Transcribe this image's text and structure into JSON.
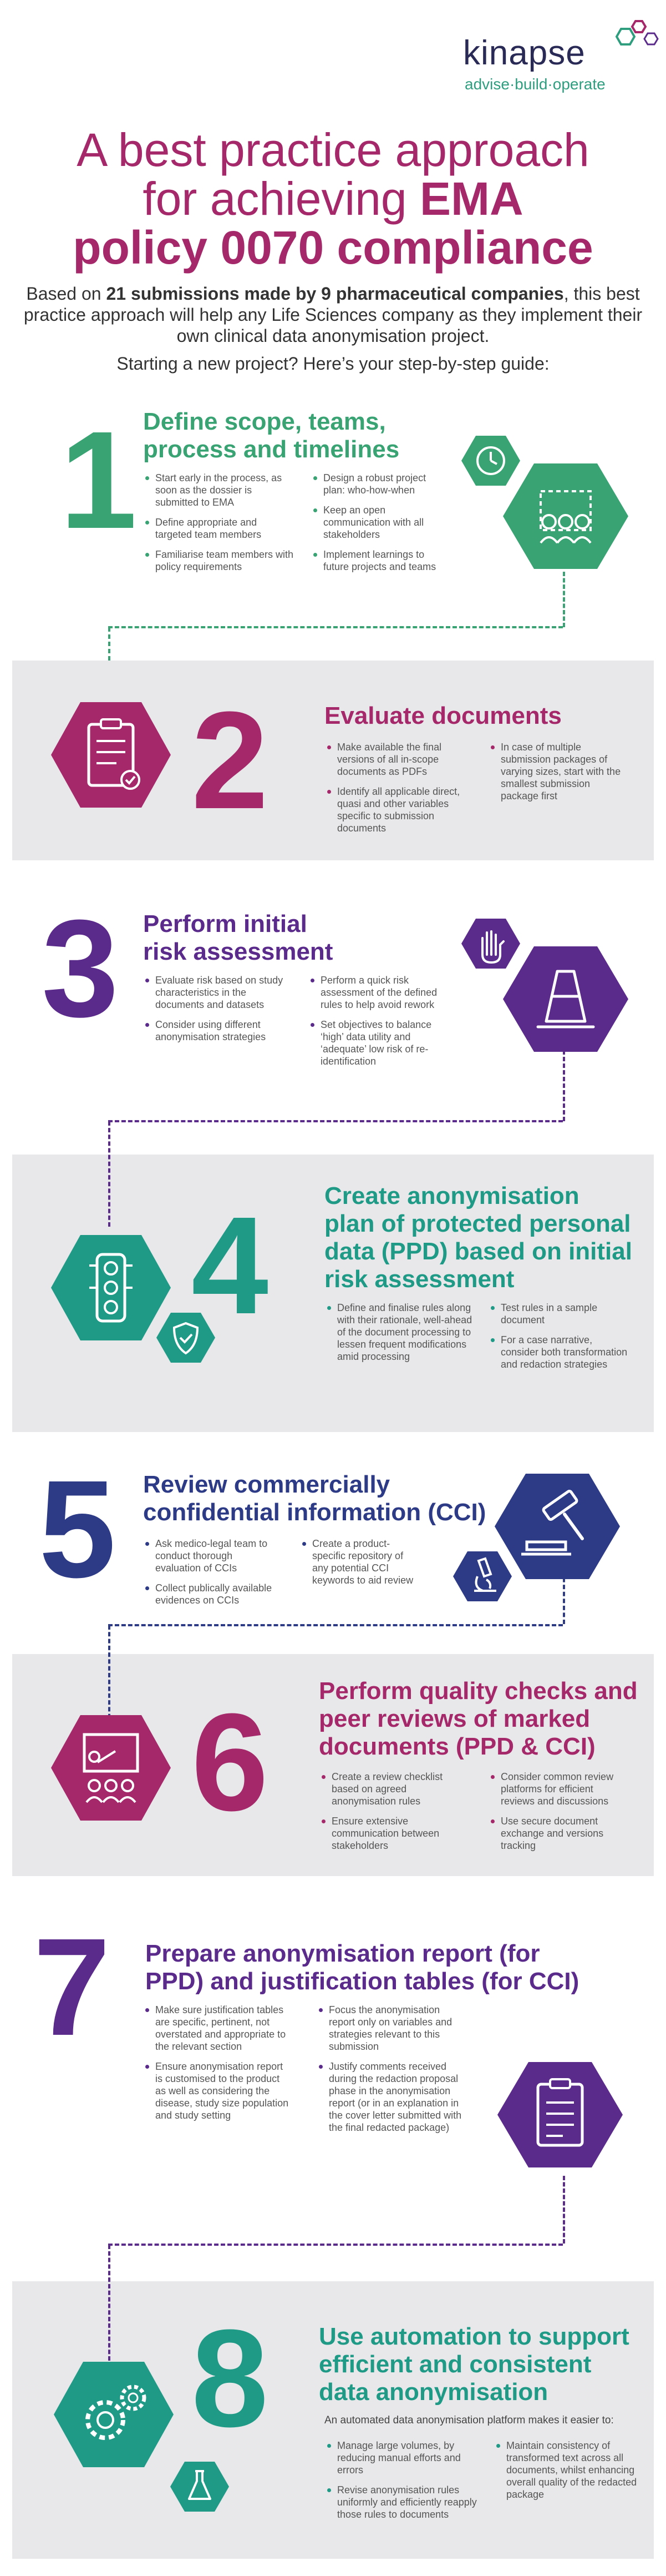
{
  "brand": {
    "name": "kinapse",
    "tagline": "advise·build·operate"
  },
  "title": {
    "line1": "A best practice approach",
    "line2_pre": "for achieving ",
    "line2_bold": "EMA",
    "line3": "policy 0070 compliance"
  },
  "intro": {
    "pre": "Based on ",
    "bold": "21 submissions made by 9 pharmaceutical companies",
    "post": ", this best practice approach will help any Life Sciences company as they implement their own clinical data anonymisation project."
  },
  "guide": "Starting a new project? Here’s your step-by-step guide:",
  "colors": {
    "green": "#3aa374",
    "magenta": "#a4286a",
    "purple": "#5b2b8c",
    "teal": "#1e9a86",
    "navy": "#2d3a86",
    "band": "#e8e8ea"
  },
  "steps": [
    {
      "number": "1",
      "title_l1": "Define scope, teams,",
      "title_l2": "process and timelines",
      "col1": [
        "Start early in the process, as soon as the dossier is submitted to EMA",
        "Define appropriate and targeted team members",
        "Familiarise team members with policy requirements"
      ],
      "col2": [
        "Design a robust project plan: who-how-when",
        "Keep an open communication with all stakeholders",
        "Implement learnings to future projects and teams"
      ],
      "icons": [
        "clock-icon",
        "team-icon"
      ]
    },
    {
      "number": "2",
      "title_l1": "Evaluate documents",
      "col1": [
        "Make available the final versions of all in-scope documents as PDFs",
        "Identify all applicable direct, quasi and other variables specific to submission documents"
      ],
      "col2": [
        "In case of multiple submission packages of varying sizes, start with the smallest submission package first"
      ],
      "icons": [
        "checklist-icon"
      ]
    },
    {
      "number": "3",
      "title_l1": "Perform initial",
      "title_l2": "risk assessment",
      "col1": [
        "Evaluate risk based on study characteristics in the documents and datasets",
        "Consider using different anonymisation strategies"
      ],
      "col2": [
        "Perform a quick risk assessment of the defined rules to help avoid rework",
        "Set objectives to balance ‘high’ data utility and ‘adequate’ low risk of re-identification"
      ],
      "icons": [
        "hand-stop-icon",
        "traffic-cone-icon"
      ]
    },
    {
      "number": "4",
      "title_l1": "Create anonymisation",
      "title_l2": "plan of protected personal",
      "title_l3": "data (PPD) based on initial",
      "title_l4": "risk assessment",
      "col1": [
        "Define and finalise rules along with their rationale, well-ahead of the document processing to lessen frequent modifications amid processing"
      ],
      "col2": [
        "Test rules in a sample document",
        "For a case narrative, consider both transformation and redaction strategies"
      ],
      "icons": [
        "traffic-light-icon",
        "shield-check-icon"
      ]
    },
    {
      "number": "5",
      "title_l1": "Review commercially",
      "title_l2": "confidential information (CCI)",
      "col1": [
        "Ask medico-legal team to conduct thorough evaluation of CCIs",
        "Collect publically available evidences on CCIs"
      ],
      "col2": [
        "Create a product-specific repository of any potential CCI keywords to aid review"
      ],
      "icons": [
        "gavel-icon",
        "microscope-icon"
      ]
    },
    {
      "number": "6",
      "title_l1": "Perform quality checks and",
      "title_l2": "peer reviews of marked",
      "title_l3": "documents (PPD & CCI)",
      "col1": [
        "Create a review checklist based on agreed anonymisation rules",
        "Ensure extensive communication between stakeholders"
      ],
      "col2": [
        "Consider common review platforms for efficient reviews and discussions",
        "Use secure document exchange and versions tracking"
      ],
      "icons": [
        "presentation-icon"
      ]
    },
    {
      "number": "7",
      "title_l1": "Prepare anonymisation report (for",
      "title_l2": "PPD) and justification tables (for CCI)",
      "col1": [
        "Make sure justification tables are specific, pertinent, not overstated and appropriate to the relevant section",
        "Ensure anonymisation report is customised to the product as well as considering the disease, study size population and study setting"
      ],
      "col2": [
        "Focus the anonymisation report only on variables and strategies relevant to this submission",
        "Justify comments received during the redaction proposal phase in the anonymisation report (or in an explanation in the cover letter submitted with the final redacted package)"
      ],
      "icons": [
        "clipboard-icon"
      ]
    },
    {
      "number": "8",
      "title_l1": "Use automation to support",
      "title_l2": "efficient and consistent",
      "title_l3": "data anonymisation",
      "lead": "An automated data anonymisation platform makes it easier to:",
      "col1": [
        "Manage large volumes, by reducing manual efforts and errors",
        "Revise anonymisation rules uniformly and efficiently reapply those rules to documents"
      ],
      "col2": [
        "Maintain consistency of transformed text across all documents, whilst enhancing overall quality of the redacted package"
      ],
      "icons": [
        "gears-icon",
        "flask-icon"
      ]
    }
  ]
}
